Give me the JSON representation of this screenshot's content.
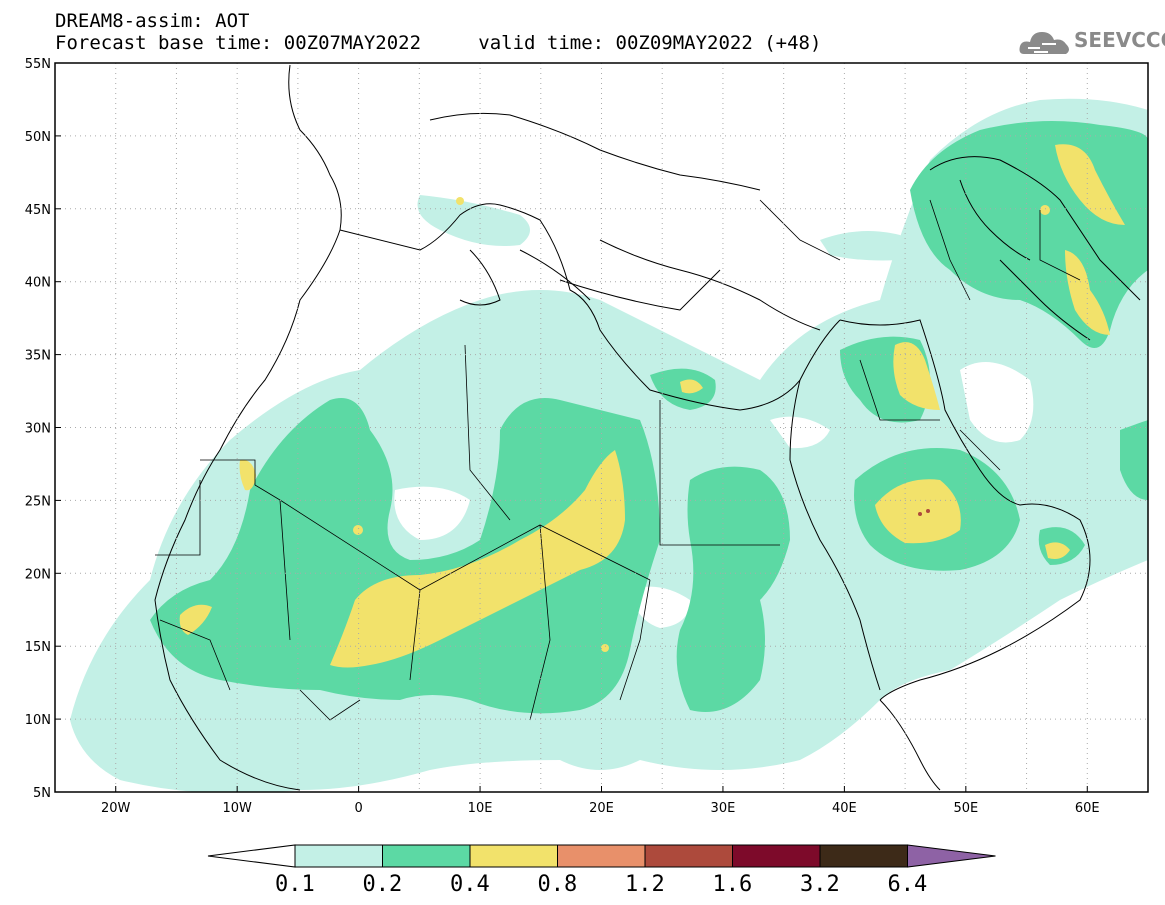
{
  "title": {
    "line1": "DREAM8-assim: AOT",
    "line2_base": "Forecast base time: 00Z07MAY2022",
    "line2_valid": "valid time: 00Z09MAY2022 (+48)"
  },
  "logo": {
    "icon": "cloud-icon",
    "text": "SEEVCCC"
  },
  "map": {
    "lat_ticks": [
      "55N",
      "50N",
      "45N",
      "40N",
      "35N",
      "30N",
      "25N",
      "20N",
      "15N",
      "10N",
      "5N"
    ],
    "lon_ticks": [
      "20W",
      "10W",
      "0",
      "10E",
      "20E",
      "30E",
      "40E",
      "50E",
      "60E"
    ],
    "lon_range": [
      -25,
      65
    ],
    "lat_range": [
      5,
      55
    ]
  },
  "chart_data": {
    "type": "heatmap",
    "title": "DREAM8-assim: AOT",
    "x_range": [
      -25,
      65
    ],
    "y_range": [
      5,
      55
    ],
    "xlabel": "",
    "ylabel": "",
    "grid": true,
    "levels": [
      "0.1",
      "0.2",
      "0.4",
      "0.8",
      "1.2",
      "1.6",
      "3.2",
      "6.4"
    ],
    "colors": [
      "#c3f0e6",
      "#5cd9a4",
      "#f2e26b",
      "#e8906a",
      "#ad4a3c",
      "#7d0a2a",
      "#3d2a18",
      "#8e62a5"
    ]
  }
}
